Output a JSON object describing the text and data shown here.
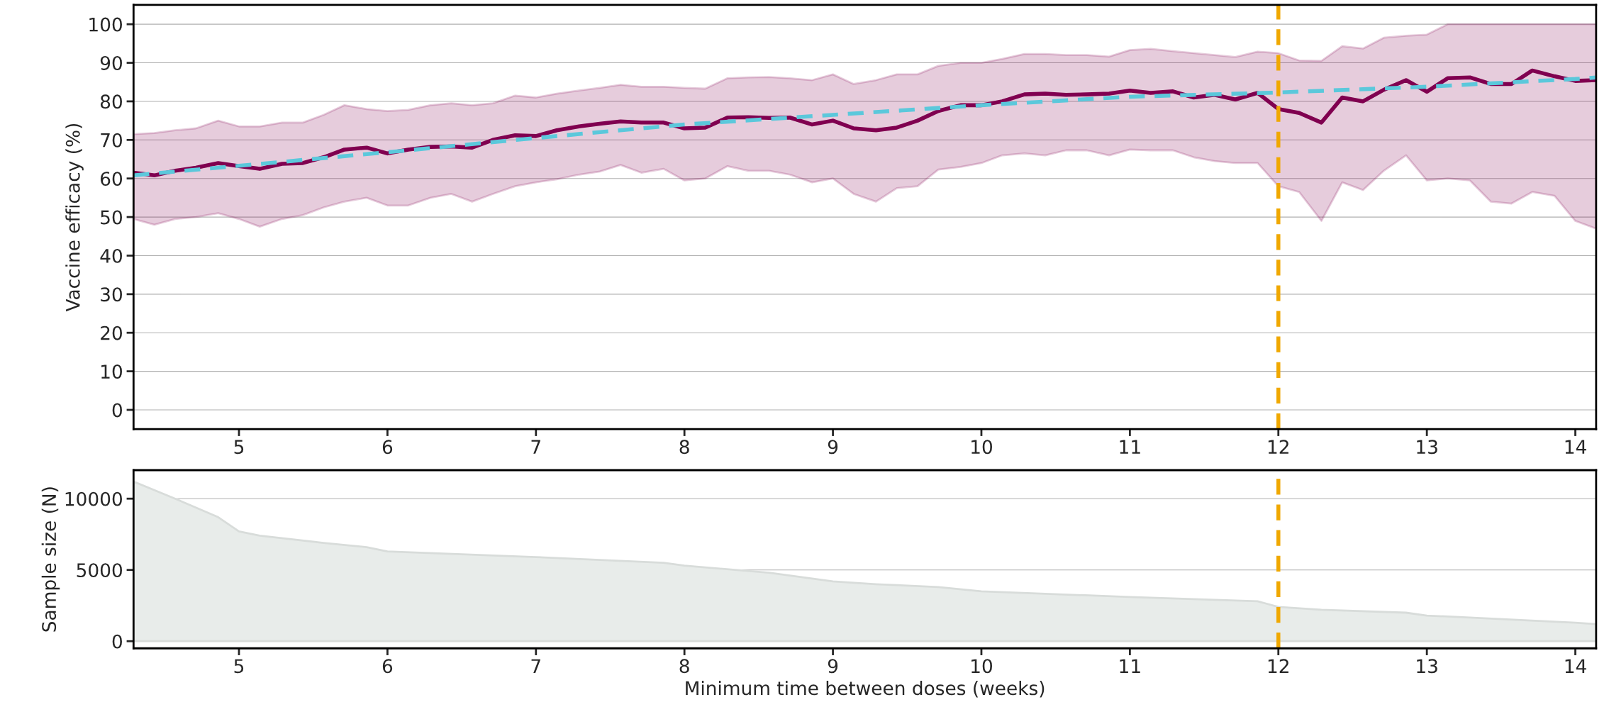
{
  "chart_data": [
    {
      "type": "line",
      "ylabel": "Vaccine efficacy (%)",
      "xlim": [
        4.29,
        14.14
      ],
      "ylim": [
        -5,
        105
      ],
      "xticks": [
        5,
        6,
        7,
        8,
        9,
        10,
        11,
        12,
        13,
        14
      ],
      "yticks": [
        0,
        10,
        20,
        30,
        40,
        50,
        60,
        70,
        80,
        90,
        100
      ],
      "grid": "y",
      "legend": false,
      "x": [
        4.29,
        4.43,
        4.57,
        4.71,
        4.86,
        5.0,
        5.14,
        5.29,
        5.43,
        5.57,
        5.71,
        5.86,
        6.0,
        6.14,
        6.29,
        6.43,
        6.57,
        6.71,
        6.86,
        7.0,
        7.14,
        7.29,
        7.43,
        7.57,
        7.71,
        7.86,
        8.0,
        8.14,
        8.29,
        8.43,
        8.57,
        8.71,
        8.86,
        9.0,
        9.14,
        9.29,
        9.43,
        9.57,
        9.71,
        9.86,
        10.0,
        10.14,
        10.29,
        10.43,
        10.57,
        10.71,
        10.86,
        11.0,
        11.14,
        11.29,
        11.43,
        11.57,
        11.71,
        11.86,
        12.0,
        12.14,
        12.29,
        12.43,
        12.57,
        12.71,
        12.86,
        13.0,
        13.14,
        13.29,
        13.43,
        13.57,
        13.71,
        13.86,
        14.0,
        14.14
      ],
      "series": [
        {
          "color": "#800050",
          "line_style": "solid",
          "values": [
            61.5,
            60.8,
            62,
            62.8,
            64,
            63.2,
            62.5,
            63.8,
            64,
            65.5,
            67.5,
            68,
            66.5,
            67.5,
            68.2,
            68.3,
            68,
            70,
            71.2,
            71,
            72.5,
            73.5,
            74.2,
            74.8,
            74.5,
            74.5,
            73,
            73.2,
            75.8,
            75.9,
            75.7,
            75.8,
            74,
            75,
            73,
            72.5,
            73.2,
            75,
            77.5,
            79,
            79,
            80,
            81.8,
            82,
            81.7,
            81.8,
            82,
            82.8,
            82.2,
            82.6,
            81,
            81.7,
            80.5,
            82.2,
            78,
            77,
            74.5,
            81,
            80,
            83,
            85.5,
            82.5,
            86,
            86.2,
            84.5,
            84.5,
            88,
            86.5,
            85.3,
            85.5
          ],
          "upper": [
            71.5,
            71.8,
            72.5,
            73,
            75,
            73.5,
            73.5,
            74.5,
            74.5,
            76.5,
            79,
            78,
            77.5,
            77.8,
            79,
            79.5,
            79,
            79.5,
            81.5,
            81,
            82,
            82.8,
            83.5,
            84.3,
            83.8,
            83.8,
            83.5,
            83.3,
            86,
            86.2,
            86.3,
            86,
            85.5,
            87,
            84.5,
            85.5,
            87,
            87,
            89.2,
            90,
            90,
            91,
            92.3,
            92.3,
            92,
            92,
            91.6,
            93.3,
            93.6,
            93,
            92.5,
            92,
            91.5,
            92.9,
            92.5,
            90.6,
            90.5,
            94.3,
            93.7,
            96.5,
            97,
            97.3,
            100,
            100,
            100,
            100,
            100,
            100,
            100,
            100
          ],
          "lower": [
            49.5,
            48,
            49.5,
            50,
            51,
            49.5,
            47.5,
            49.5,
            50.5,
            52.5,
            54,
            55,
            53,
            53,
            55,
            56,
            54,
            56,
            58,
            59,
            59.8,
            61,
            61.8,
            63.5,
            61.5,
            62.5,
            59.5,
            60,
            63.2,
            62,
            62,
            61,
            59,
            60,
            56,
            54,
            57.5,
            58,
            62.3,
            63,
            64,
            66,
            66.5,
            66,
            67.3,
            67.3,
            66,
            67.5,
            67.3,
            67.3,
            65.5,
            64.5,
            64,
            64,
            58,
            56.5,
            49,
            59,
            57,
            62,
            66,
            59.5,
            60,
            59.5,
            54,
            53.5,
            56.5,
            55.5,
            49,
            47
          ]
        },
        {
          "color": "#5bc8db",
          "line_style": "dashed",
          "x": [
            4.29,
            5,
            6,
            7,
            8,
            9,
            10,
            11,
            12,
            13,
            14,
            14.14
          ],
          "values": [
            60.8,
            63.3,
            66.8,
            70.5,
            74,
            76.5,
            79,
            81.2,
            82.3,
            83.8,
            85.8,
            86.2
          ]
        }
      ],
      "ref_lines": [
        {
          "axis": "x",
          "value": 12,
          "color": "#f0a800",
          "line_style": "dashed"
        }
      ]
    },
    {
      "type": "area",
      "ylabel": "Sample size (N)",
      "xlabel": "Minimum time between doses (weeks)",
      "xlim": [
        4.29,
        14.14
      ],
      "ylim": [
        -500,
        12000
      ],
      "xticks": [
        5,
        6,
        7,
        8,
        9,
        10,
        11,
        12,
        13,
        14
      ],
      "yticks": [
        0,
        5000,
        10000
      ],
      "grid": "y",
      "legend": false,
      "x": [
        4.29,
        4.57,
        4.86,
        5.0,
        5.14,
        5.57,
        5.86,
        6.0,
        7.0,
        7.86,
        8.0,
        8.57,
        8.86,
        9.0,
        9.29,
        9.71,
        10.0,
        11.0,
        11.86,
        12.0,
        12.29,
        12.86,
        13.0,
        14.0,
        14.14
      ],
      "series": [
        {
          "color": "#e8ecea",
          "values": [
            11200,
            10000,
            8700,
            7700,
            7400,
            6900,
            6600,
            6300,
            5900,
            5500,
            5300,
            4800,
            4400,
            4200,
            4000,
            3800,
            3500,
            3100,
            2800,
            2400,
            2200,
            2000,
            1800,
            1300,
            1200
          ]
        }
      ],
      "ref_lines": [
        {
          "axis": "x",
          "value": 12,
          "color": "#f0a800",
          "line_style": "dashed"
        }
      ]
    }
  ]
}
